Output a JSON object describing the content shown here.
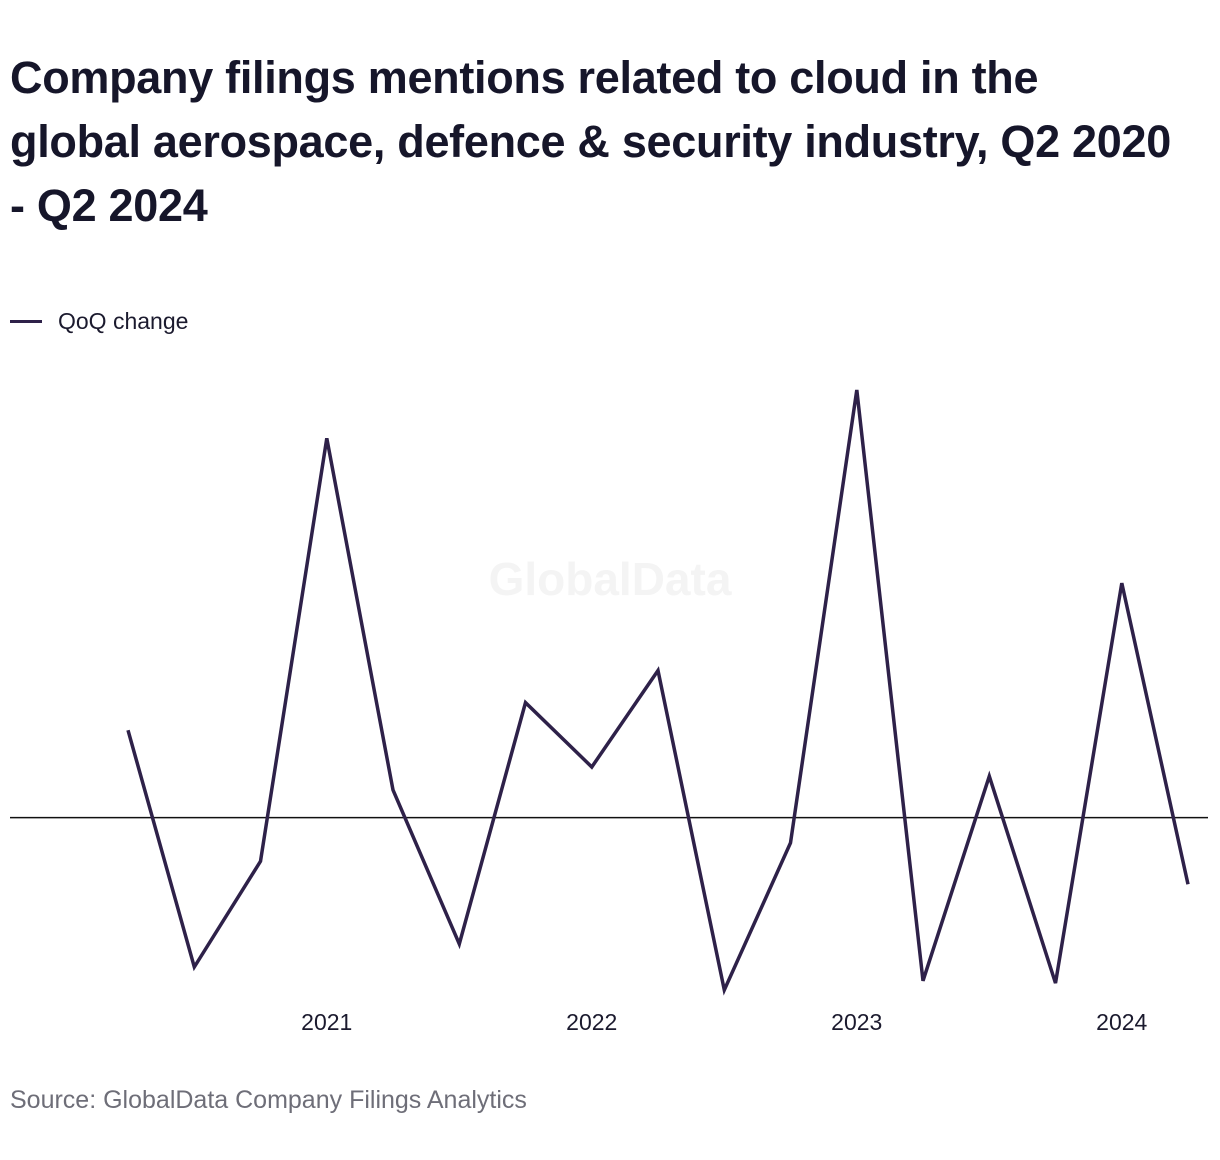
{
  "title": "Company filings mentions related to cloud in the global aerospace, defence & security industry, Q2 2020 - Q2 2024",
  "source": "Source: GlobalData Company Filings Analytics",
  "watermark": "GlobalData",
  "colors": {
    "line": "#2e2149",
    "zero_line": "#111111",
    "text": "#1b1a2e",
    "source_text": "#6e6e78",
    "watermark": "#f4f4f4"
  },
  "chart_data": {
    "type": "line",
    "title": "Company filings mentions related to cloud in the global aerospace, defence & security industry, Q2 2020 - Q2 2024",
    "xlabel": "",
    "ylabel": "",
    "x": [
      "Q2 2020",
      "Q3 2020",
      "Q4 2020",
      "Q1 2021",
      "Q2 2021",
      "Q3 2021",
      "Q4 2021",
      "Q1 2022",
      "Q2 2022",
      "Q3 2022",
      "Q4 2022",
      "Q1 2023",
      "Q2 2023",
      "Q3 2023",
      "Q4 2023",
      "Q1 2024",
      "Q2 2024"
    ],
    "x_tick_labels": [
      {
        "label": "2021",
        "x": "Q1 2021"
      },
      {
        "label": "2022",
        "x": "Q1 2022"
      },
      {
        "label": "2023",
        "x": "Q1 2023"
      },
      {
        "label": "2024",
        "x": "Q1 2024"
      }
    ],
    "series": [
      {
        "name": "QoQ change",
        "values": [
          3.8,
          -6.5,
          -1.9,
          16.5,
          1.2,
          -5.5,
          5.0,
          2.2,
          6.4,
          -7.5,
          -1.1,
          18.6,
          -7.1,
          1.8,
          -7.2,
          10.2,
          -2.9
        ]
      }
    ],
    "ylim": [
      -7.5,
      18.6
    ],
    "zero_line": true,
    "grid": false,
    "legend_position": "top-left"
  }
}
